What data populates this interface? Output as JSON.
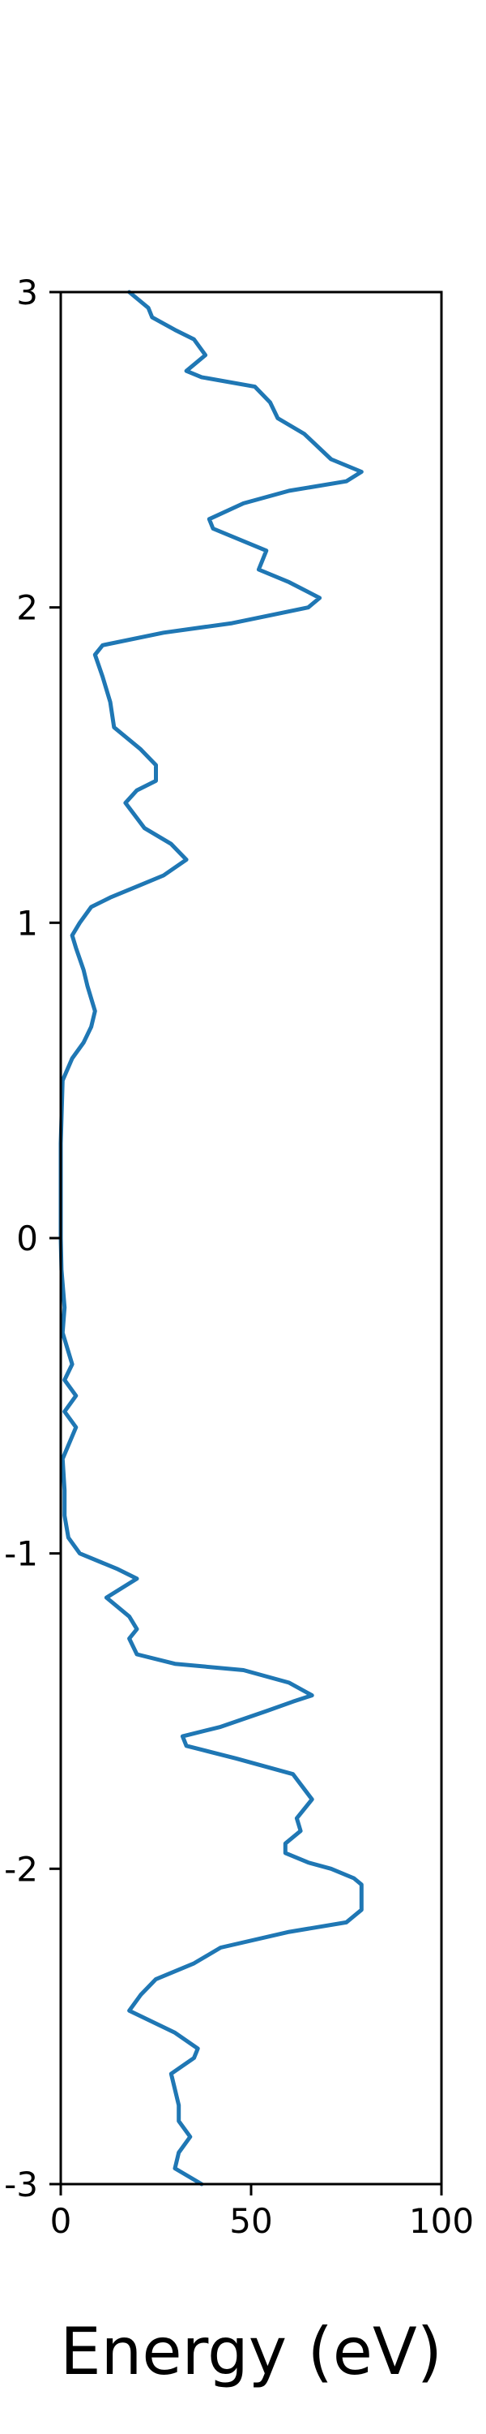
{
  "chart_data": {
    "type": "line",
    "title": "",
    "xlabel": "Energy (eV)",
    "ylabel": "",
    "xlim": [
      0,
      100
    ],
    "ylim": [
      -3,
      3
    ],
    "grid": false,
    "x_ticks": [
      {
        "value": 0,
        "label": "0"
      },
      {
        "value": 50,
        "label": "50"
      },
      {
        "value": 100,
        "label": "100"
      }
    ],
    "y_ticks": [
      {
        "value": 3,
        "label": "3"
      },
      {
        "value": 2,
        "label": "2"
      },
      {
        "value": 1,
        "label": "1"
      },
      {
        "value": 0,
        "label": "0"
      },
      {
        "value": -1,
        "label": "-1"
      },
      {
        "value": -2,
        "label": "-2"
      },
      {
        "value": -3,
        "label": "-3"
      }
    ],
    "series": [
      {
        "color": "#1f77b4",
        "points": [
          [
            37,
            -3.0
          ],
          [
            30,
            -2.95
          ],
          [
            31,
            -2.9
          ],
          [
            34,
            -2.85
          ],
          [
            31,
            -2.8
          ],
          [
            31,
            -2.75
          ],
          [
            30,
            -2.7
          ],
          [
            29,
            -2.65
          ],
          [
            35,
            -2.6
          ],
          [
            36,
            -2.57
          ],
          [
            30,
            -2.52
          ],
          [
            18,
            -2.45
          ],
          [
            21,
            -2.4
          ],
          [
            25,
            -2.35
          ],
          [
            35,
            -2.3
          ],
          [
            42,
            -2.25
          ],
          [
            60,
            -2.2
          ],
          [
            75,
            -2.17
          ],
          [
            79,
            -2.13
          ],
          [
            79,
            -2.05
          ],
          [
            77,
            -2.03
          ],
          [
            71,
            -2.0
          ],
          [
            65,
            -1.98
          ],
          [
            59,
            -1.95
          ],
          [
            59,
            -1.92
          ],
          [
            63,
            -1.88
          ],
          [
            62,
            -1.84
          ],
          [
            66,
            -1.78
          ],
          [
            61,
            -1.7
          ],
          [
            46,
            -1.65
          ],
          [
            33,
            -1.61
          ],
          [
            32,
            -1.58
          ],
          [
            42,
            -1.55
          ],
          [
            54,
            -1.5
          ],
          [
            61,
            -1.47
          ],
          [
            66,
            -1.45
          ],
          [
            60,
            -1.41
          ],
          [
            48,
            -1.37
          ],
          [
            30,
            -1.35
          ],
          [
            20,
            -1.32
          ],
          [
            18,
            -1.27
          ],
          [
            20,
            -1.24
          ],
          [
            18,
            -1.2
          ],
          [
            12,
            -1.14
          ],
          [
            20,
            -1.08
          ],
          [
            15,
            -1.05
          ],
          [
            5,
            -1.0
          ],
          [
            2,
            -0.95
          ],
          [
            1,
            -0.88
          ],
          [
            1,
            -0.8
          ],
          [
            0.5,
            -0.7
          ],
          [
            4,
            -0.6
          ],
          [
            1,
            -0.55
          ],
          [
            4,
            -0.5
          ],
          [
            1,
            -0.45
          ],
          [
            3,
            -0.4
          ],
          [
            0.5,
            -0.3
          ],
          [
            1,
            -0.22
          ],
          [
            0.2,
            -0.1
          ],
          [
            0,
            0.0
          ],
          [
            0,
            0.3
          ],
          [
            0.5,
            0.5
          ],
          [
            3,
            0.57
          ],
          [
            6,
            0.62
          ],
          [
            8,
            0.67
          ],
          [
            9,
            0.72
          ],
          [
            7,
            0.8
          ],
          [
            6,
            0.85
          ],
          [
            4,
            0.92
          ],
          [
            3,
            0.96
          ],
          [
            5,
            1.0
          ],
          [
            8,
            1.05
          ],
          [
            13,
            1.08
          ],
          [
            21,
            1.12
          ],
          [
            27,
            1.15
          ],
          [
            33,
            1.2
          ],
          [
            29,
            1.25
          ],
          [
            22,
            1.3
          ],
          [
            17,
            1.38
          ],
          [
            20,
            1.42
          ],
          [
            25,
            1.45
          ],
          [
            25,
            1.5
          ],
          [
            21,
            1.55
          ],
          [
            14,
            1.62
          ],
          [
            13,
            1.7
          ],
          [
            11,
            1.78
          ],
          [
            9,
            1.85
          ],
          [
            11,
            1.88
          ],
          [
            27,
            1.92
          ],
          [
            45,
            1.95
          ],
          [
            65,
            2.0
          ],
          [
            68,
            2.03
          ],
          [
            60,
            2.08
          ],
          [
            52,
            2.12
          ],
          [
            54,
            2.18
          ],
          [
            40,
            2.25
          ],
          [
            39,
            2.28
          ],
          [
            48,
            2.33
          ],
          [
            60,
            2.37
          ],
          [
            75,
            2.4
          ],
          [
            79,
            2.43
          ],
          [
            71,
            2.47
          ],
          [
            64,
            2.55
          ],
          [
            57,
            2.6
          ],
          [
            55,
            2.65
          ],
          [
            51,
            2.7
          ],
          [
            37,
            2.73
          ],
          [
            33,
            2.75
          ],
          [
            38,
            2.8
          ],
          [
            35,
            2.85
          ],
          [
            30,
            2.88
          ],
          [
            24,
            2.92
          ],
          [
            23,
            2.95
          ],
          [
            18,
            3.0
          ]
        ]
      }
    ]
  }
}
